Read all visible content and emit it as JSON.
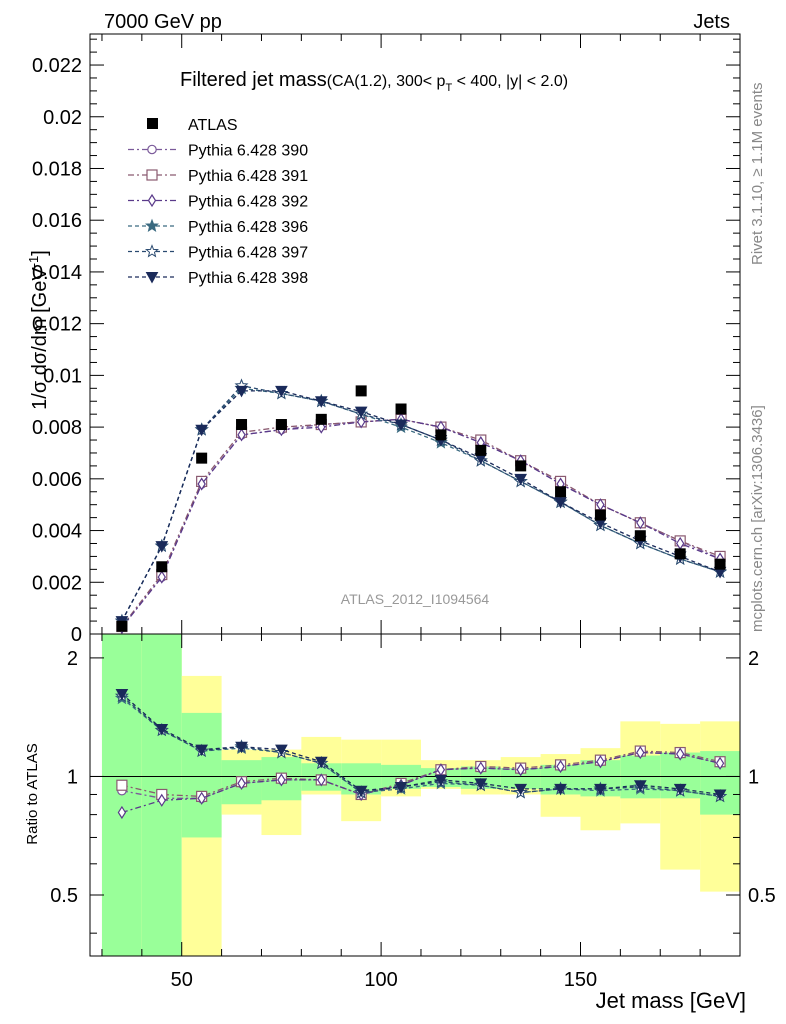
{
  "header": {
    "left": "7000 GeV pp",
    "right": "Jets"
  },
  "side_labels": {
    "rivet": "Rivet 3.1.10, ≥ 1.1M events",
    "mcplots": "mcplots.cern.ch [arXiv:1306.3436]"
  },
  "chart_data": {
    "type": "scatter",
    "title_main": "Filtered jet mass",
    "title_sub": "(CA(1.2), 300< p",
    "title_sub_subscript": "T",
    "title_sub_end": " < 400, |y| < 2.0)",
    "watermark": "ATLAS_2012_I1094564",
    "xlabel": "Jet mass [GeV]",
    "ylabel_main": "1/σ dσ/dm [GeV",
    "ylabel_main_sup": "-1",
    "ylabel_main_end": "]",
    "ylabel_ratio": "Ratio to ATLAS",
    "xlim": [
      27,
      190
    ],
    "ylim_main": [
      0,
      0.0232
    ],
    "ylim_ratio": [
      0.35,
      2.3
    ],
    "x_ticks": [
      "50",
      "100",
      "150"
    ],
    "y_ticks_main": [
      "0",
      "0.002",
      "0.004",
      "0.006",
      "0.008",
      "0.01",
      "0.012",
      "0.014",
      "0.016",
      "0.018",
      "0.02",
      "0.022"
    ],
    "y_ticks_ratio": [
      "0.5",
      "1",
      "2"
    ],
    "bins": [
      [
        30,
        40
      ],
      [
        40,
        50
      ],
      [
        50,
        60
      ],
      [
        60,
        70
      ],
      [
        70,
        80
      ],
      [
        80,
        90
      ],
      [
        90,
        100
      ],
      [
        100,
        110
      ],
      [
        110,
        120
      ],
      [
        120,
        130
      ],
      [
        130,
        140
      ],
      [
        140,
        150
      ],
      [
        150,
        160
      ],
      [
        160,
        170
      ],
      [
        170,
        180
      ],
      [
        180,
        190
      ]
    ],
    "data": {
      "name": "ATLAS",
      "x": [
        35,
        45,
        55,
        65,
        75,
        85,
        95,
        105,
        115,
        125,
        135,
        145,
        155,
        165,
        175,
        185
      ],
      "y": [
        0.0003,
        0.0026,
        0.0068,
        0.0081,
        0.0081,
        0.0083,
        0.0094,
        0.0087,
        0.0077,
        0.0071,
        0.0065,
        0.0055,
        0.0046,
        0.0038,
        0.0031,
        0.0027
      ]
    },
    "bands": {
      "inner": [
        [
          0.3,
          2.3
        ],
        [
          0.3,
          2.3
        ],
        [
          0.7,
          1.45
        ],
        [
          0.85,
          1.1
        ],
        [
          0.87,
          1.12
        ],
        [
          0.92,
          1.08
        ],
        [
          0.9,
          1.08
        ],
        [
          0.93,
          1.07
        ],
        [
          0.94,
          1.05
        ],
        [
          0.93,
          1.06
        ],
        [
          0.93,
          1.05
        ],
        [
          0.9,
          1.07
        ],
        [
          0.89,
          1.1
        ],
        [
          0.88,
          1.13
        ],
        [
          0.88,
          1.15
        ],
        [
          0.8,
          1.16
        ]
      ],
      "outer": [
        [
          0.3,
          2.3
        ],
        [
          0.3,
          2.2
        ],
        [
          0.3,
          1.8
        ],
        [
          0.8,
          1.17
        ],
        [
          0.71,
          1.17
        ],
        [
          0.9,
          1.26
        ],
        [
          0.77,
          1.24
        ],
        [
          0.89,
          1.24
        ],
        [
          0.93,
          1.1
        ],
        [
          0.9,
          1.1
        ],
        [
          0.9,
          1.12
        ],
        [
          0.79,
          1.14
        ],
        [
          0.73,
          1.18
        ],
        [
          0.76,
          1.38
        ],
        [
          0.58,
          1.36
        ],
        [
          0.51,
          1.38
        ]
      ]
    },
    "series": [
      {
        "name": "Pythia 6.428 390",
        "color": "#7b5a9a",
        "marker": "circle-open",
        "dash": "6,3,2,3",
        "values": [
          0.00028,
          0.0022,
          0.0058,
          0.0077,
          0.0079,
          0.0081,
          0.0082,
          0.0083,
          0.008,
          0.0074,
          0.0067,
          0.0058,
          0.005,
          0.0043,
          0.0036,
          0.0029
        ],
        "ratio": [
          0.92,
          0.88,
          0.88,
          0.96,
          0.98,
          0.98,
          0.9,
          0.95,
          1.04,
          1.05,
          1.04,
          1.06,
          1.09,
          1.15,
          1.14,
          1.08
        ]
      },
      {
        "name": "Pythia 6.428 391",
        "color": "#8a5a70",
        "marker": "square-open",
        "dash": "6,3,2,3",
        "values": [
          0.00029,
          0.0023,
          0.0059,
          0.0078,
          0.008,
          0.0081,
          0.0082,
          0.0083,
          0.008,
          0.0075,
          0.0067,
          0.0059,
          0.005,
          0.0043,
          0.0036,
          0.003
        ],
        "ratio": [
          0.95,
          0.9,
          0.89,
          0.97,
          0.99,
          0.98,
          0.9,
          0.96,
          1.04,
          1.06,
          1.05,
          1.07,
          1.1,
          1.16,
          1.15,
          1.09
        ]
      },
      {
        "name": "Pythia 6.428 392",
        "color": "#5a3a8a",
        "marker": "diamond-open",
        "dash": "6,3,2,3",
        "values": [
          0.00025,
          0.0022,
          0.0058,
          0.0077,
          0.0079,
          0.008,
          0.0082,
          0.0083,
          0.008,
          0.0074,
          0.0067,
          0.0058,
          0.005,
          0.0043,
          0.0035,
          0.0029
        ],
        "ratio": [
          0.81,
          0.87,
          0.88,
          0.96,
          0.98,
          0.98,
          0.9,
          0.95,
          1.04,
          1.05,
          1.04,
          1.06,
          1.09,
          1.15,
          1.14,
          1.08
        ]
      },
      {
        "name": "Pythia 6.428 396",
        "color": "#3a6a80",
        "marker": "star-filled",
        "dash": "4,3",
        "values": [
          0.0005,
          0.0034,
          0.0079,
          0.0095,
          0.0093,
          0.009,
          0.0085,
          0.008,
          0.0074,
          0.0067,
          0.0059,
          0.0051,
          0.0042,
          0.0035,
          0.0029,
          0.0024
        ],
        "ratio": [
          1.58,
          1.31,
          1.16,
          1.18,
          1.15,
          1.08,
          0.91,
          0.93,
          0.96,
          0.95,
          0.91,
          0.93,
          0.92,
          0.93,
          0.92,
          0.89
        ]
      },
      {
        "name": "Pythia 6.428 397",
        "color": "#2a4a70",
        "marker": "star-open",
        "dash": "4,3",
        "values": [
          0.0005,
          0.0034,
          0.0079,
          0.0096,
          0.0093,
          0.009,
          0.0085,
          0.0081,
          0.0075,
          0.0067,
          0.0059,
          0.0051,
          0.0042,
          0.0035,
          0.0029,
          0.0024
        ],
        "ratio": [
          1.6,
          1.31,
          1.16,
          1.19,
          1.15,
          1.08,
          0.91,
          0.94,
          0.97,
          0.95,
          0.91,
          0.93,
          0.93,
          0.94,
          0.92,
          0.89
        ]
      },
      {
        "name": "Pythia 6.428 398",
        "color": "#1a2a5a",
        "marker": "triangle-down-filled",
        "dash": "4,3",
        "values": [
          0.0005,
          0.0034,
          0.0079,
          0.0094,
          0.0094,
          0.009,
          0.0086,
          0.0081,
          0.0075,
          0.0068,
          0.006,
          0.0051,
          0.0043,
          0.0036,
          0.003,
          0.0024
        ],
        "ratio": [
          1.62,
          1.32,
          1.17,
          1.19,
          1.17,
          1.09,
          0.92,
          0.94,
          0.98,
          0.96,
          0.93,
          0.93,
          0.93,
          0.95,
          0.93,
          0.9
        ]
      }
    ]
  }
}
